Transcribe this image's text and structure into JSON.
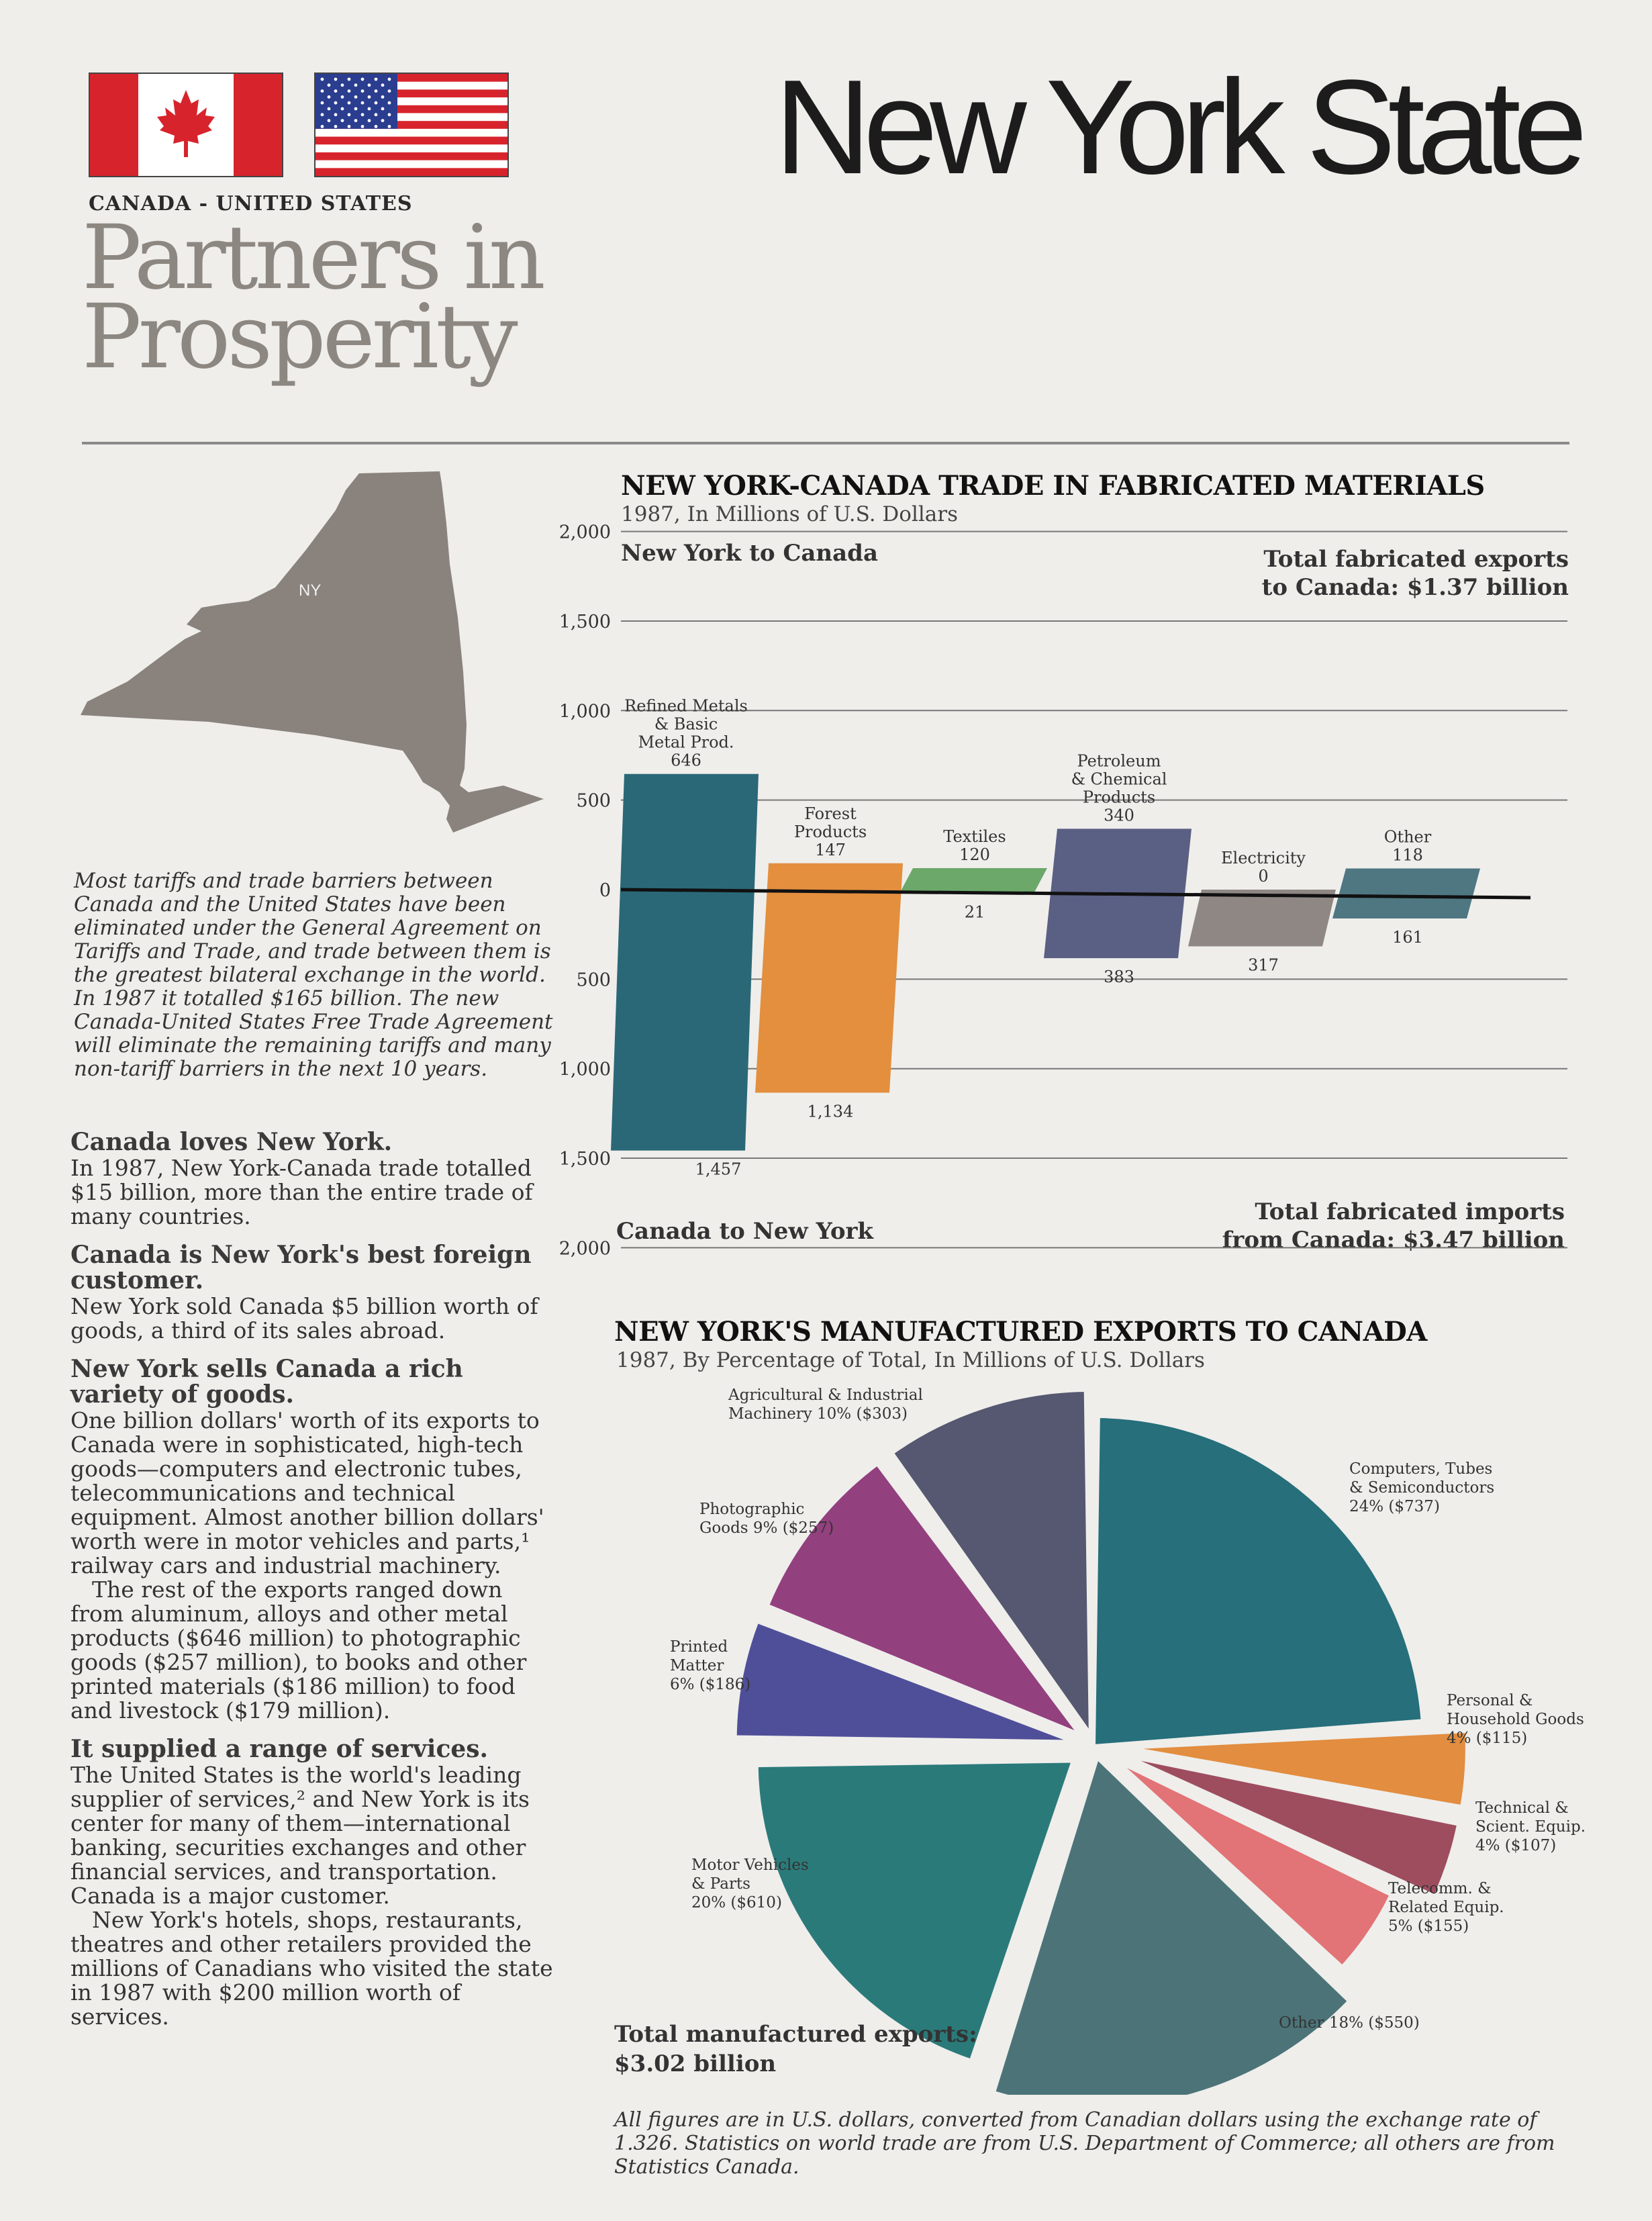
{
  "header": {
    "main_title": "New York State",
    "small_title": "CANADA - UNITED STATES",
    "partners_line1": "Partners in",
    "partners_line2": "Prosperity"
  },
  "map": {
    "label": "NY"
  },
  "intro": "Most tariffs and trade barriers between Canada and the United States have been eliminated under the General Agreement on Tariffs and Trade, and trade between them is the greatest bilateral exchange in the world. In 1987 it totalled $165 billion. The new Canada-United States Free Trade Agreement will eliminate the remaining tariffs and many non-tariff barriers in the next 10 years.",
  "body": {
    "h1": "Canada loves New York.",
    "p1": "In 1987, New York-Canada trade totalled $15 billion, more than the entire trade of many countries.",
    "h2": "Canada is New York's best foreign customer.",
    "p2": "New York sold Canada $5 billion worth of goods, a third of its sales abroad.",
    "h3": "New York sells Canada a rich variety of goods.",
    "p3": "One billion dollars' worth of its exports to Canada were in sophisticated, high-tech goods—computers and electronic tubes, telecommunications and technical equipment. Almost another billion dollars' worth were in motor vehicles and parts,¹ railway cars and industrial machinery.",
    "p4": "The rest of the exports ranged down from aluminum, alloys and other metal products ($646 million) to photographic goods ($257 million), to books and other printed materials ($186 million) to food and livestock ($179 million).",
    "h4": "It supplied a range of services.",
    "p5": "The United States is the world's leading supplier of services,² and New York is its center for many of them—international banking, securities exchanges and other financial services, and transportation. Canada is a major customer.",
    "p6": "New York's hotels, shops, restaurants, theatres and other retailers provided the millions of Canadians who visited the state in 1987 with $200 million worth of services."
  },
  "bar_section": {
    "title": "NEW YORK-CANADA TRADE IN FABRICATED MATERIALS",
    "subtitle": "1987, In Millions of U.S. Dollars",
    "top_label": "New York to Canada",
    "bottom_label": "Canada to New York",
    "total_exports_line1": "Total fabricated exports",
    "total_exports_line2": "to Canada: $1.37 billion",
    "total_imports_line1": "Total fabricated imports",
    "total_imports_line2": "from Canada: $3.47 billion"
  },
  "pie_section": {
    "title": "NEW YORK'S MANUFACTURED EXPORTS TO CANADA",
    "subtitle": "1987, By Percentage of Total, In Millions of U.S. Dollars",
    "total_line1": "Total manufactured exports:",
    "total_line2": "$3.02 billion"
  },
  "footer": "All figures are in U.S. dollars, converted from Canadian dollars using the exchange rate of 1.326. Statistics on world trade are from U.S. Department of Commerce; all others are from Statistics Canada.",
  "colors": {
    "flag_red": "#d7242c",
    "us_blue": "#2b3d8f",
    "map_gray": "#8a837d",
    "rule_gray": "#8a8a8a"
  },
  "chart_data": [
    {
      "type": "bar",
      "title": "NEW YORK-CANADA TRADE IN FABRICATED MATERIALS",
      "subtitle": "1987, In Millions of U.S. Dollars",
      "ylim": [
        -2000,
        2000
      ],
      "ticks": [
        {
          "v": 2000,
          "label": "2,000"
        },
        {
          "v": 1500,
          "label": "1,500"
        },
        {
          "v": 1000,
          "label": "1,000"
        },
        {
          "v": 500,
          "label": "500"
        },
        {
          "v": 0,
          "label": "0"
        },
        {
          "v": -500,
          "label": "500"
        },
        {
          "v": -1000,
          "label": "1,000"
        },
        {
          "v": -1500,
          "label": "1,500"
        },
        {
          "v": -2000,
          "label": "2,000"
        }
      ],
      "categories": [
        {
          "label": [
            "Refined Metals",
            "& Basic",
            "Metal Prod."
          ],
          "export": 646,
          "import": 1457,
          "export_label": "646",
          "import_label": "1,457",
          "color": "#2a6878"
        },
        {
          "label": [
            "Forest",
            "Products"
          ],
          "export": 147,
          "import": 1134,
          "export_label": "147",
          "import_label": "1,134",
          "color": "#e38f3e"
        },
        {
          "label": [
            "Textiles"
          ],
          "export": 120,
          "import": 21,
          "export_label": "120",
          "import_label": "21",
          "color": "#6ca86a"
        },
        {
          "label": [
            "Petroleum",
            "& Chemical",
            "Products"
          ],
          "export": 340,
          "import": 383,
          "export_label": "340",
          "import_label": "383",
          "color": "#5a5f84"
        },
        {
          "label": [
            "Electricity"
          ],
          "export": 0,
          "import": 317,
          "export_label": "0",
          "import_label": "317",
          "color": "#8e8784"
        },
        {
          "label": [
            "Other"
          ],
          "export": 118,
          "import": 161,
          "export_label": "118",
          "import_label": "161",
          "color": "#4e7782"
        }
      ]
    },
    {
      "type": "pie",
      "title": "NEW YORK'S MANUFACTURED EXPORTS TO CANADA",
      "subtitle": "1987, By Percentage of Total, In Millions of U.S. Dollars",
      "slices": [
        {
          "label": [
            "Computers, Tubes",
            "& Semiconductors",
            "24% ($737)"
          ],
          "percent": 24,
          "value": 737,
          "color": "#266f7b"
        },
        {
          "label": [
            "Personal &",
            "Household Goods",
            "4% ($115)"
          ],
          "percent": 4,
          "value": 115,
          "color": "#e28d3f"
        },
        {
          "label": [
            "Technical &",
            "Scient. Equip.",
            "4% ($107)"
          ],
          "percent": 4,
          "value": 107,
          "color": "#9e4d5e"
        },
        {
          "label": [
            "Telecomm. &",
            "Related Equip.",
            "5% ($155)"
          ],
          "percent": 5,
          "value": 155,
          "color": "#e27376"
        },
        {
          "label": [
            "Other 18% ($550)"
          ],
          "percent": 18,
          "value": 550,
          "color": "#4c7478"
        },
        {
          "label": [
            "Motor Vehicles",
            "& Parts",
            "20% ($610)"
          ],
          "percent": 20,
          "value": 610,
          "color": "#2b7a7a"
        },
        {
          "label": [
            "Printed",
            "Matter",
            "6% ($186)"
          ],
          "percent": 6,
          "value": 186,
          "color": "#4f4f99"
        },
        {
          "label": [
            "Photographic",
            "Goods 9% ($257)"
          ],
          "percent": 9,
          "value": 257,
          "color": "#93407f"
        },
        {
          "label": [
            "Agricultural & Industrial",
            "Machinery 10% ($303)"
          ],
          "percent": 10,
          "value": 303,
          "color": "#555870"
        }
      ]
    }
  ]
}
